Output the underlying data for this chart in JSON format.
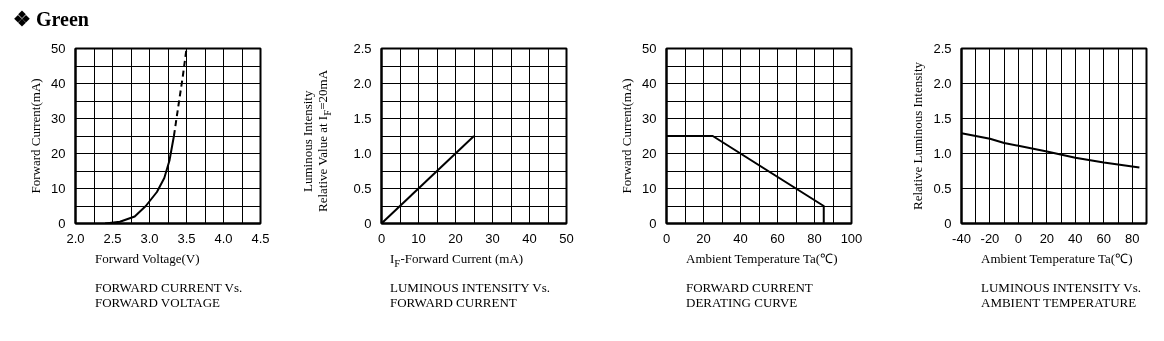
{
  "chart_data": [
    {
      "type": "line",
      "title": "❖ Green",
      "xlabel": "Forward Voltage(V)",
      "ylabel": "Forward Current(mA)",
      "annotations": [
        "FORWARD CURRENT Vs.\nFORWARD VOLTAGE"
      ],
      "xlim": [
        2,
        4.5
      ],
      "ylim": [
        0,
        50
      ],
      "xticks": [
        {
          "value": 2,
          "label": "2.0"
        },
        {
          "value": 2.25,
          "label": null
        },
        {
          "value": 2.5,
          "label": "2.5"
        },
        {
          "value": 2.75,
          "label": null
        },
        {
          "value": 3,
          "label": "3.0"
        },
        {
          "value": 3.25,
          "label": null
        },
        {
          "value": 3.5,
          "label": "3.5"
        },
        {
          "value": 3.75,
          "label": null
        },
        {
          "value": 4,
          "label": "4.0"
        },
        {
          "value": 4.25,
          "label": null
        },
        {
          "value": 4.5,
          "label": "4.5"
        }
      ],
      "yticks": [
        0,
        {
          "value": 5,
          "label": null
        },
        10,
        {
          "value": 15,
          "label": null
        },
        20,
        {
          "value": 25,
          "label": null
        },
        30,
        {
          "value": 35,
          "label": null
        },
        40,
        {
          "value": 45,
          "label": null
        },
        50
      ],
      "grid": true,
      "series": [
        {
          "color": "#000000",
          "line_style": "solid",
          "x": [
            2.4,
            2.6,
            2.8,
            2.95,
            3.1,
            3.2,
            3.27,
            3.33
          ],
          "values": [
            0,
            0.5,
            2,
            5,
            9,
            13,
            18,
            25
          ]
        },
        {
          "color": "#000000",
          "line_style": "dashed",
          "x": [
            3.33,
            3.4,
            3.45,
            3.5
          ],
          "values": [
            25,
            35,
            42,
            50
          ]
        }
      ]
    },
    {
      "type": "line",
      "xlabel": "I$_{F}$-Forward Current (mA)",
      "ylabel": "Luminous Intensity\nRelative Value at I$_{F}$=20mA",
      "annotations": [
        "LUMINOUS INTENSITY Vs.\nFORWARD CURRENT"
      ],
      "xlim": [
        0,
        50
      ],
      "ylim": [
        0,
        2.5
      ],
      "xticks": [
        0,
        {
          "value": 5,
          "label": null
        },
        10,
        {
          "value": 15,
          "label": null
        },
        20,
        {
          "value": 25,
          "label": null
        },
        30,
        {
          "value": 35,
          "label": null
        },
        40,
        {
          "value": 45,
          "label": null
        },
        50
      ],
      "yticks": [
        0,
        {
          "value": 0.25,
          "label": null
        },
        0.5,
        {
          "value": 0.75,
          "label": null
        },
        {
          "value": 1,
          "label": "1.0"
        },
        {
          "value": 1.25,
          "label": null
        },
        1.5,
        {
          "value": 1.75,
          "label": null
        },
        {
          "value": 2,
          "label": "2.0"
        },
        {
          "value": 2.25,
          "label": null
        },
        2.5
      ],
      "grid": true,
      "series": [
        {
          "color": "#000000",
          "line_style": "solid",
          "x": [
            0,
            25
          ],
          "values": [
            0,
            1.25
          ]
        }
      ]
    },
    {
      "type": "line",
      "xlabel": "Ambient Temperature Ta(℃)",
      "ylabel": "Forward Current(mA)",
      "annotations": [
        "FORWARD CURRENT\nDERATING CURVE"
      ],
      "xlim": [
        0,
        100
      ],
      "ylim": [
        0,
        50
      ],
      "xticks": [
        0,
        {
          "value": 10,
          "label": null
        },
        20,
        {
          "value": 30,
          "label": null
        },
        40,
        {
          "value": 50,
          "label": null
        },
        60,
        {
          "value": 70,
          "label": null
        },
        80,
        {
          "value": 90,
          "label": null
        },
        100
      ],
      "yticks": [
        0,
        {
          "value": 5,
          "label": null
        },
        10,
        {
          "value": 15,
          "label": null
        },
        20,
        {
          "value": 25,
          "label": null
        },
        30,
        {
          "value": 35,
          "label": null
        },
        40,
        {
          "value": 45,
          "label": null
        },
        50
      ],
      "grid": true,
      "series": [
        {
          "color": "#000000",
          "line_style": "solid",
          "x": [
            0,
            25,
            85,
            85
          ],
          "values": [
            25,
            25,
            5,
            0
          ]
        }
      ]
    },
    {
      "type": "line",
      "xlabel": "Ambient Temperature Ta(℃)",
      "ylabel": "Relative Luminous Intensity",
      "annotations": [
        "LUMINOUS INTENSITY Vs.\nAMBIENT TEMPERATURE"
      ],
      "xlim": [
        -40,
        90
      ],
      "ylim": [
        0,
        2.5
      ],
      "xticks": [
        -40,
        {
          "value": -30,
          "label": null
        },
        -20,
        {
          "value": -10,
          "label": null
        },
        0,
        {
          "value": 10,
          "label": null
        },
        20,
        {
          "value": 30,
          "label": null
        },
        40,
        {
          "value": 50,
          "label": null
        },
        60,
        {
          "value": 70,
          "label": null
        },
        80
      ],
      "yticks": [
        0,
        0.5,
        {
          "value": 1,
          "label": "1.0"
        },
        1.5,
        {
          "value": 2,
          "label": "2.0"
        },
        2.5
      ],
      "grid": true,
      "series": [
        {
          "color": "#000000",
          "line_style": "solid",
          "x": [
            -40,
            -20,
            -10,
            0,
            20,
            40,
            60,
            85
          ],
          "values": [
            1.29,
            1.21,
            1.15,
            1.11,
            1.03,
            0.94,
            0.87,
            0.8
          ]
        }
      ]
    }
  ]
}
